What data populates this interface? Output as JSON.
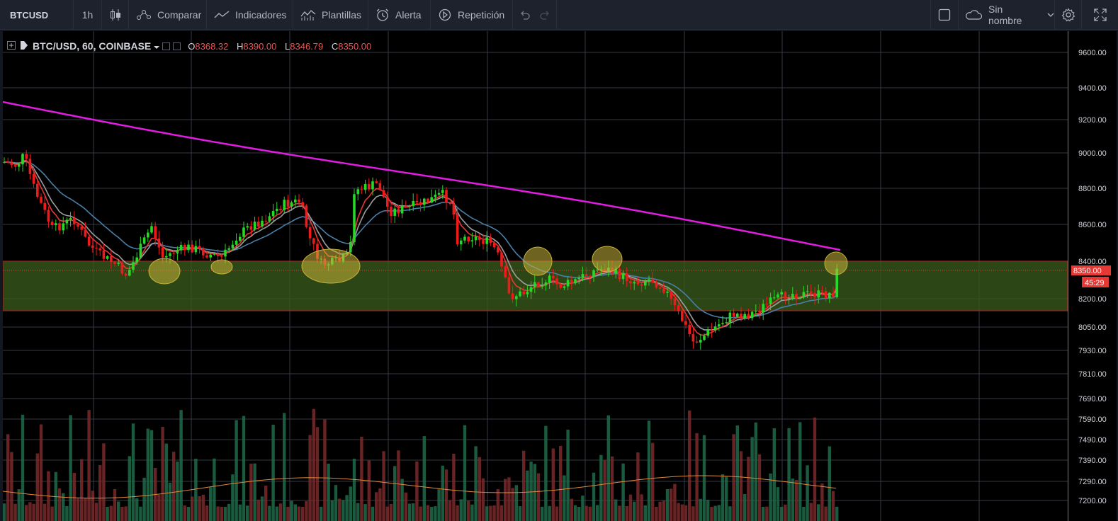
{
  "toolbar": {
    "symbol": "BTCUSD",
    "interval": "1h",
    "compare_label": "Comparar",
    "indicators_label": "Indicadores",
    "templates_label": "Plantillas",
    "alert_label": "Alerta",
    "replay_label": "Repetición",
    "layout_name": "Sin nombre"
  },
  "legend": {
    "title": "BTC/USD, 60, COINBASE",
    "open_key": "O",
    "open": "8368.32",
    "high_key": "H",
    "high": "8390.00",
    "low_key": "L",
    "low": "8346.79",
    "close_key": "C",
    "close": "8350.00"
  },
  "price_axis": {
    "ticks": [
      "9600.00",
      "9400.00",
      "9200.00",
      "9000.00",
      "8800.00",
      "8600.00",
      "8400.00",
      "8200.00",
      "8050.00",
      "7930.00",
      "7810.00",
      "7690.00",
      "7590.00",
      "7490.00",
      "7390.00",
      "7290.00",
      "7200.00"
    ],
    "last_price": "8350.00",
    "countdown": "45:29"
  },
  "colors": {
    "up": "#26d926",
    "down": "#ef1b1b",
    "ema200": "#e21ce2",
    "ema_fast": "#e53935",
    "ema_mid": "#9e9e9e",
    "ema_slow": "#4a7fa8",
    "zone": "#3a5a1c",
    "last_price_bg": "#e53935",
    "highlight": "#c8b43a"
  }
}
